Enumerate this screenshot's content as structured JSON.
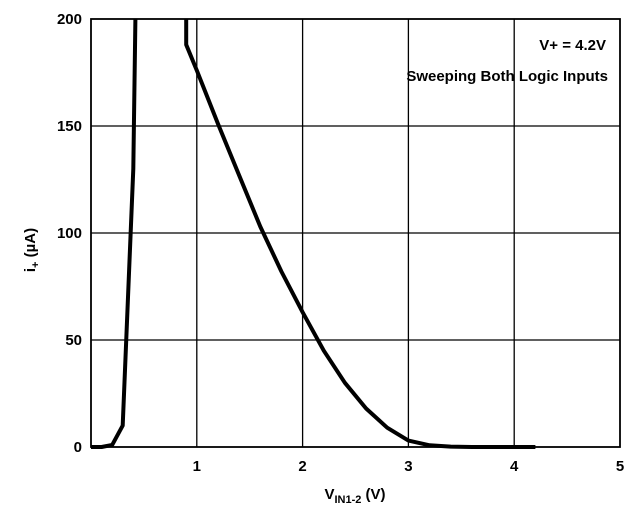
{
  "chart_data": {
    "type": "line",
    "title": "",
    "xlabel": {
      "main": "V",
      "subscript": "IN1-2",
      "suffix": " (V)"
    },
    "ylabel": {
      "main": "i",
      "subscript": "+",
      "suffix": " (µA)"
    },
    "xlim": [
      0,
      5
    ],
    "ylim": [
      0,
      200
    ],
    "x_ticks": [
      1,
      2,
      3,
      4,
      5
    ],
    "y_ticks": [
      0,
      50,
      100,
      150,
      200
    ],
    "grid": true,
    "annotations": [
      "V+ = 4.2V",
      "Sweeping Both Logic Inputs"
    ],
    "series": [
      {
        "points": [
          [
            0,
            0
          ],
          [
            0.1,
            0
          ],
          [
            0.2,
            1
          ],
          [
            0.3,
            10
          ],
          [
            0.35,
            70
          ],
          [
            0.4,
            130
          ],
          [
            0.42,
            200
          ]
        ]
      },
      {
        "points": [
          [
            0.9,
            200
          ],
          [
            0.9,
            188
          ],
          [
            1.0,
            176
          ],
          [
            1.2,
            151
          ],
          [
            1.4,
            127
          ],
          [
            1.6,
            103
          ],
          [
            1.8,
            82
          ],
          [
            2.0,
            63
          ],
          [
            2.2,
            45
          ],
          [
            2.4,
            30
          ],
          [
            2.6,
            18
          ],
          [
            2.8,
            9
          ],
          [
            3.0,
            3
          ],
          [
            3.2,
            0.8
          ],
          [
            3.4,
            0.2
          ],
          [
            3.6,
            0
          ],
          [
            4.0,
            0
          ],
          [
            4.2,
            0
          ]
        ]
      }
    ]
  }
}
